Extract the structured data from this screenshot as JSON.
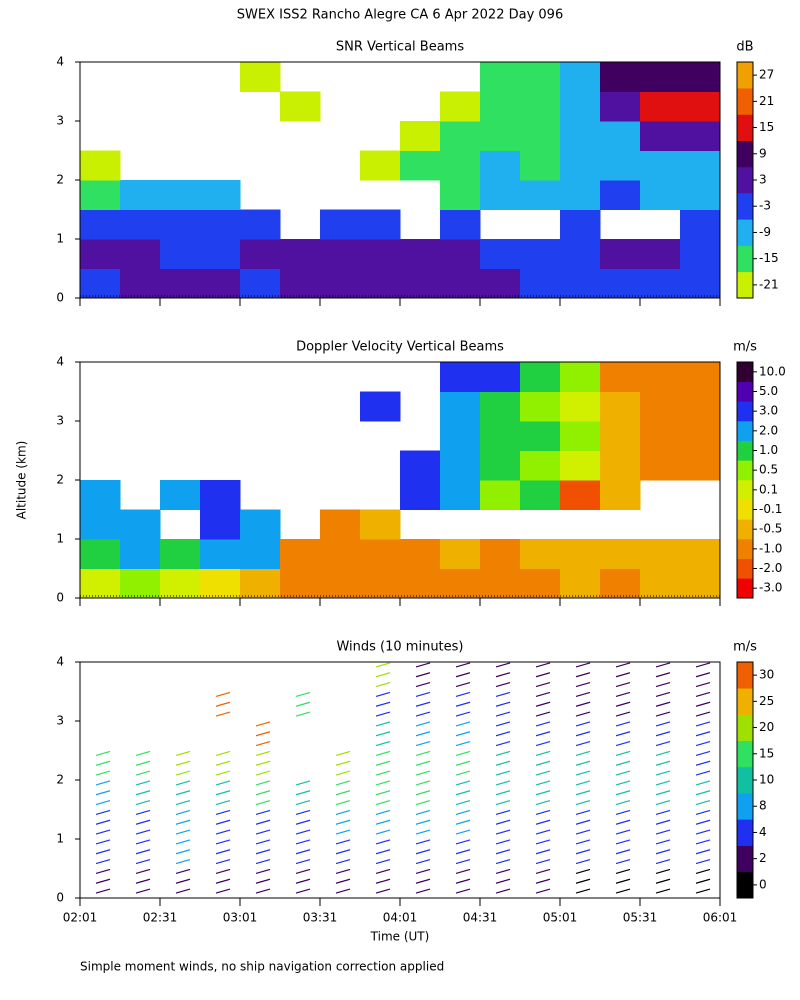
{
  "title": "SWEX ISS2 Rancho Alegre CA   6 Apr 2022 Day 096",
  "y_label": "Altitude (km)",
  "note": "Simple moment winds, no ship navigation correction applied",
  "chart_data": [
    {
      "type": "heatmap",
      "title": "SNR Vertical Beams",
      "unit": "dB",
      "ylim": [
        0,
        4
      ],
      "yticks": [
        0,
        1,
        2,
        3,
        4
      ],
      "color_ticks": [
        -21,
        -15,
        -9,
        -3,
        3,
        9,
        15,
        21,
        27
      ],
      "colors": [
        "#c8f000",
        "#30e060",
        "#20b0f0",
        "#2040f0",
        "#5010a0",
        "#400060",
        "#e01010",
        "#f06000",
        "#f0a000"
      ],
      "z": [
        [
          -3,
          3,
          3,
          3,
          -3,
          3,
          3,
          3,
          3,
          3,
          3,
          -3,
          -3,
          -3,
          -3,
          -3
        ],
        [
          3,
          3,
          -3,
          -3,
          3,
          3,
          3,
          3,
          3,
          3,
          -3,
          -3,
          -3,
          3,
          3,
          -3
        ],
        [
          -3,
          -3,
          -3,
          -3,
          -3,
          null,
          -3,
          -3,
          null,
          -3,
          null,
          null,
          -3,
          null,
          null,
          -3
        ],
        [
          -15,
          -9,
          -9,
          -9,
          null,
          null,
          null,
          null,
          null,
          -15,
          -9,
          -9,
          -9,
          -3,
          -9,
          -9
        ],
        [
          -21,
          null,
          null,
          null,
          null,
          null,
          null,
          -21,
          -15,
          -15,
          -9,
          -15,
          -9,
          -9,
          -9,
          -9
        ],
        [
          null,
          null,
          null,
          null,
          null,
          null,
          null,
          null,
          -21,
          -15,
          -15,
          -15,
          -9,
          -9,
          3,
          3
        ],
        [
          null,
          null,
          null,
          null,
          null,
          -21,
          null,
          null,
          null,
          -21,
          -15,
          -15,
          -9,
          3,
          15,
          15
        ],
        [
          null,
          null,
          null,
          null,
          -21,
          null,
          null,
          null,
          null,
          null,
          -15,
          -15,
          -9,
          9,
          9,
          9
        ]
      ]
    },
    {
      "type": "heatmap",
      "title": "Doppler Velocity Vertical Beams",
      "unit": "m/s",
      "ylim": [
        0,
        4
      ],
      "yticks": [
        0,
        1,
        2,
        3,
        4
      ],
      "color_ticks": [
        {
          "value": -3,
          "label": "-3.0"
        },
        {
          "value": -2,
          "label": "-2.0"
        },
        {
          "value": -1,
          "label": "-1.0"
        },
        -0.5,
        -0.1,
        0.1,
        0.5,
        {
          "value": 1,
          "label": "1.0"
        },
        {
          "value": 2,
          "label": "2.0"
        },
        {
          "value": 3,
          "label": "3.0"
        },
        {
          "value": 5,
          "label": "5.0"
        },
        {
          "value": 10,
          "label": "10.0"
        }
      ],
      "colors": [
        "#f00000",
        "#f05000",
        "#f08000",
        "#f0b000",
        "#f0e000",
        "#d0f000",
        "#90f000",
        "#20d040",
        "#10a0f0",
        "#2030f0",
        "#5000b0",
        "#300030"
      ],
      "z": [
        [
          0.1,
          0.5,
          0.1,
          -0.1,
          -0.5,
          -1,
          -1,
          -1,
          -1,
          -1,
          -1,
          -1,
          -0.5,
          -1,
          -0.5,
          -0.5
        ],
        [
          1,
          2,
          1,
          2,
          2,
          -1,
          -1,
          -1,
          -1,
          -0.5,
          -1,
          -0.5,
          -0.5,
          -0.5,
          -0.5,
          -0.5
        ],
        [
          2,
          2,
          null,
          3,
          2,
          null,
          -1,
          -0.5,
          null,
          null,
          null,
          null,
          null,
          null,
          null,
          null
        ],
        [
          2,
          null,
          2,
          3,
          null,
          null,
          null,
          null,
          3,
          2,
          0.5,
          1,
          -2,
          -0.5,
          null,
          null
        ],
        [
          null,
          null,
          null,
          null,
          null,
          null,
          null,
          null,
          3,
          2,
          1,
          0.5,
          0.1,
          -0.5,
          -1,
          -1
        ],
        [
          null,
          null,
          null,
          null,
          null,
          null,
          null,
          null,
          null,
          2,
          1,
          1,
          0.5,
          -0.5,
          -1,
          -1
        ],
        [
          null,
          null,
          null,
          null,
          null,
          null,
          null,
          3,
          null,
          2,
          1,
          0.5,
          0.1,
          -0.5,
          -1,
          -1
        ],
        [
          null,
          null,
          null,
          null,
          null,
          null,
          null,
          null,
          null,
          3,
          3,
          1,
          0.5,
          -1,
          -1,
          -1
        ]
      ]
    },
    {
      "type": "winds",
      "title": "Winds (10 minutes)",
      "unit": "m/s",
      "x_label": "Time (UT)",
      "ylim": [
        0,
        4
      ],
      "yticks": [
        0,
        1,
        2,
        3,
        4
      ],
      "xticks": [
        "02:01",
        "02:31",
        "03:01",
        "03:31",
        "04:01",
        "04:31",
        "05:01",
        "05:31",
        "06:01"
      ],
      "color_ticks": [
        0,
        2,
        4,
        8,
        10,
        15,
        20,
        25,
        30
      ],
      "colors": [
        "#000000",
        "#400060",
        "#2030f0",
        "#10a0f0",
        "#10c0a0",
        "#30e060",
        "#a0e000",
        "#f0b000",
        "#f06000"
      ],
      "z": [
        [
          2,
          2,
          2,
          2,
          2,
          2,
          2,
          2,
          2,
          2,
          2,
          2,
          0,
          0,
          0,
          0
        ],
        [
          4,
          4,
          8,
          4,
          4,
          4,
          4,
          4,
          4,
          4,
          4,
          4,
          4,
          4,
          4,
          4
        ],
        [
          4,
          6,
          8,
          6,
          6,
          6,
          8,
          8,
          8,
          8,
          6,
          4,
          6,
          4,
          6,
          4
        ],
        [
          8,
          10,
          12,
          12,
          14,
          12,
          14,
          14,
          14,
          12,
          10,
          10,
          10,
          10,
          10,
          10
        ],
        [
          16,
          16,
          18,
          20,
          22,
          null,
          18,
          16,
          16,
          14,
          10,
          10,
          10,
          10,
          10,
          6
        ],
        [
          null,
          null,
          null,
          null,
          28,
          null,
          null,
          12,
          8,
          8,
          4,
          4,
          4,
          4,
          4,
          4
        ],
        [
          null,
          null,
          null,
          28,
          null,
          14,
          null,
          6,
          4,
          4,
          4,
          2,
          2,
          2,
          2,
          2
        ],
        [
          null,
          null,
          null,
          null,
          null,
          null,
          null,
          20,
          2,
          2,
          2,
          2,
          2,
          2,
          2,
          2
        ]
      ]
    }
  ]
}
